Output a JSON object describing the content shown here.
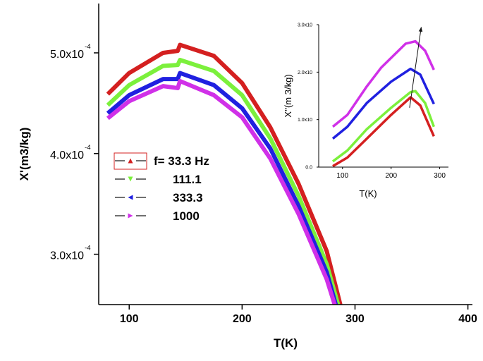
{
  "chart_data": [
    {
      "type": "line",
      "xlabel": "T(K)",
      "ylabel": "X'(m3/kg)",
      "xlim": [
        73,
        404
      ],
      "ylim": [
        0.00025,
        0.000549
      ],
      "xticks": [
        100,
        200,
        300,
        400
      ],
      "xtick_labels": [
        "100",
        "200",
        "300",
        "400"
      ],
      "yticks": [
        0.0003,
        0.0004,
        0.0005
      ],
      "ytick_labels": [
        "3.0x10",
        "4.0x10",
        "5.0x10"
      ],
      "ytick_exponent": "-4",
      "legend": {
        "placement": "center-left",
        "title_prefix": "f= ",
        "unit": " Hz"
      },
      "series": [
        {
          "name": "33.3",
          "color": "#d42020",
          "marker": "triangle-up",
          "x": [
            81,
            100,
            130,
            143,
            145,
            175,
            200,
            225,
            250,
            275,
            287
          ],
          "y": [
            0.000459,
            0.00048,
            0.0005,
            0.000502,
            0.000508,
            0.000497,
            0.00047,
            0.000426,
            0.00037,
            0.000303,
            0.00025
          ]
        },
        {
          "name": "111.1",
          "color": "#7cf03c",
          "marker": "triangle-down",
          "x": [
            81,
            100,
            130,
            143,
            145,
            175,
            200,
            225,
            250,
            275,
            285
          ],
          "y": [
            0.000448,
            0.000468,
            0.000487,
            0.000488,
            0.000493,
            0.000482,
            0.000458,
            0.000415,
            0.000358,
            0.00029,
            0.00025
          ]
        },
        {
          "name": "333.3",
          "color": "#2020e0",
          "marker": "triangle-left",
          "x": [
            81,
            100,
            130,
            143,
            145,
            175,
            200,
            225,
            250,
            275,
            283
          ],
          "y": [
            0.00044,
            0.000458,
            0.000474,
            0.000474,
            0.00048,
            0.000468,
            0.000445,
            0.000405,
            0.000348,
            0.000282,
            0.00025
          ]
        },
        {
          "name": "1000",
          "color": "#d030e8",
          "marker": "triangle-right",
          "x": [
            81,
            100,
            130,
            143,
            145,
            175,
            200,
            225,
            250,
            275,
            282
          ],
          "y": [
            0.000435,
            0.000452,
            0.000467,
            0.000465,
            0.000472,
            0.000458,
            0.000436,
            0.000395,
            0.00034,
            0.000275,
            0.00025
          ]
        }
      ]
    },
    {
      "type": "line",
      "placement": "inset-top-right",
      "xlabel": "T(K)",
      "ylabel": "X''(m 3/kg)",
      "xlim": [
        51,
        318
      ],
      "ylim": [
        0,
        3.0
      ],
      "xticks": [
        100,
        200,
        300
      ],
      "xtick_labels": [
        "100",
        "200",
        "300"
      ],
      "yticks": [
        0,
        1.0,
        2.0,
        3.0
      ],
      "ytick_labels": [
        "0.0",
        "1.0x10",
        "2.0x10",
        "3.0x10"
      ],
      "annotation": {
        "type": "arrow",
        "from": [
          238,
          1.25
        ],
        "to": [
          262,
          2.95
        ]
      },
      "series": [
        {
          "color": "#d030e8",
          "x": [
            80,
            110,
            150,
            180,
            200,
            230,
            250,
            270,
            288
          ],
          "y": [
            0.85,
            1.1,
            1.7,
            2.1,
            2.3,
            2.6,
            2.65,
            2.45,
            2.05
          ]
        },
        {
          "color": "#2020e0",
          "x": [
            80,
            110,
            150,
            200,
            240,
            260,
            288
          ],
          "y": [
            0.6,
            0.85,
            1.35,
            1.8,
            2.07,
            1.95,
            1.33
          ]
        },
        {
          "color": "#7cf03c",
          "x": [
            80,
            110,
            150,
            200,
            240,
            250,
            270,
            288
          ],
          "y": [
            0.12,
            0.35,
            0.8,
            1.25,
            1.58,
            1.6,
            1.35,
            0.85
          ]
        },
        {
          "color": "#d42020",
          "x": [
            80,
            110,
            150,
            200,
            240,
            260,
            288
          ],
          "y": [
            0.02,
            0.2,
            0.6,
            1.1,
            1.47,
            1.3,
            0.65
          ]
        }
      ]
    }
  ]
}
